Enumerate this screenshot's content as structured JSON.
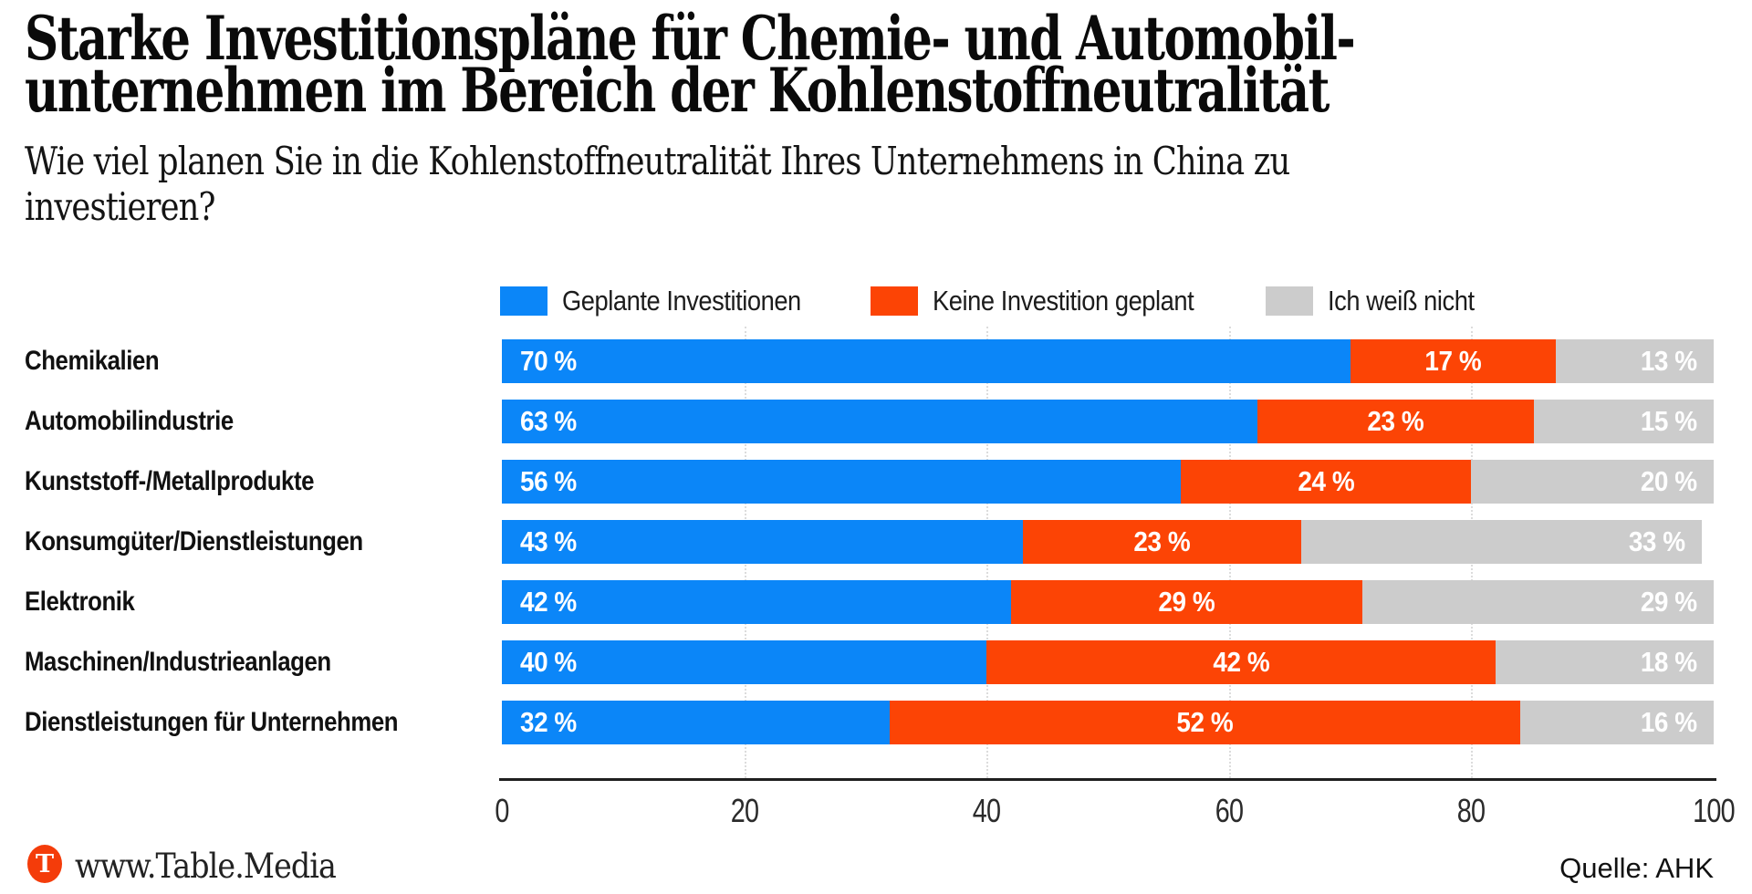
{
  "header": {
    "title_line1": "Starke Investitionspläne für Chemie- und Automobil-",
    "title_line2": "unternehmen im Bereich der Kohlenstoffneutralität",
    "subtitle_line1": "Wie viel planen Sie in die Kohlenstoffneutralität Ihres Unternehmens in China zu",
    "subtitle_line2": "investieren?"
  },
  "colors": {
    "planned": "#0b86f8",
    "none_planned": "#fc4405",
    "dont_know": "#cccccc",
    "axis_line": "#1f1f1f",
    "gridline": "#dcdcdc",
    "logo": "#f43c0a"
  },
  "legend": {
    "items": [
      {
        "label": "Geplante Investitionen",
        "color": "#0b86f8"
      },
      {
        "label": "Keine Investition geplant",
        "color": "#fc4405"
      },
      {
        "label": "Ich weiß nicht",
        "color": "#cccccc"
      }
    ]
  },
  "chart_data": {
    "type": "bar",
    "orientation": "horizontal-stacked",
    "title": "Starke Investitionspläne für Chemie- und Automobilunternehmen im Bereich der Kohlenstoffneutralität",
    "subtitle": "Wie viel planen Sie in die Kohlenstoffneutralität Ihres Unternehmens in China zu investieren?",
    "categories": [
      "Chemikalien",
      "Automobilindustrie",
      "Kunststoff-/Metallprodukte",
      "Konsumgüter/Dienstleistungen",
      "Elektronik",
      "Maschinen/Industrieanlagen",
      "Dienstleistungen für Unternehmen"
    ],
    "series": [
      {
        "name": "Geplante Investitionen",
        "color": "#0b86f8",
        "values": [
          70,
          63,
          56,
          43,
          42,
          40,
          32
        ]
      },
      {
        "name": "Keine Investition geplant",
        "color": "#fc4405",
        "values": [
          17,
          23,
          24,
          23,
          29,
          42,
          52
        ]
      },
      {
        "name": "Ich weiß nicht",
        "color": "#cccccc",
        "values": [
          13,
          15,
          20,
          33,
          29,
          18,
          16
        ]
      }
    ],
    "value_suffix": " %",
    "x_ticks": [
      0,
      20,
      40,
      60,
      80,
      100
    ],
    "xlim": [
      0,
      100
    ],
    "grid": "dotted-vertical",
    "legend_position": "top"
  },
  "footer": {
    "logo_letter": "T",
    "brand": "www.Table.Media",
    "source": "Quelle: AHK"
  }
}
